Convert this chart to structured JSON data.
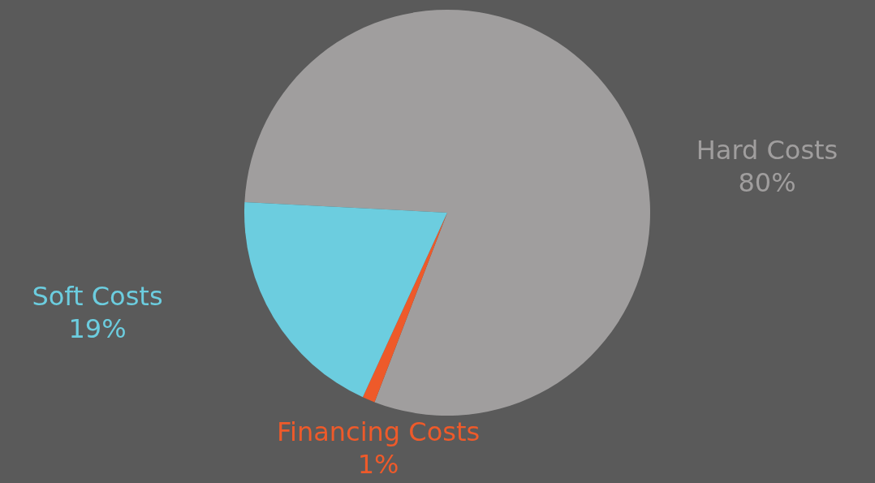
{
  "chart_data": {
    "type": "pie",
    "categories": [
      "Hard Costs",
      "Financing Costs",
      "Soft Costs"
    ],
    "values": [
      80,
      1,
      19
    ],
    "colors": [
      "#a09e9e",
      "#ee5a2a",
      "#6ccddf"
    ],
    "value_labels": [
      "80%",
      "1%",
      "19%"
    ],
    "legend": false
  }
}
